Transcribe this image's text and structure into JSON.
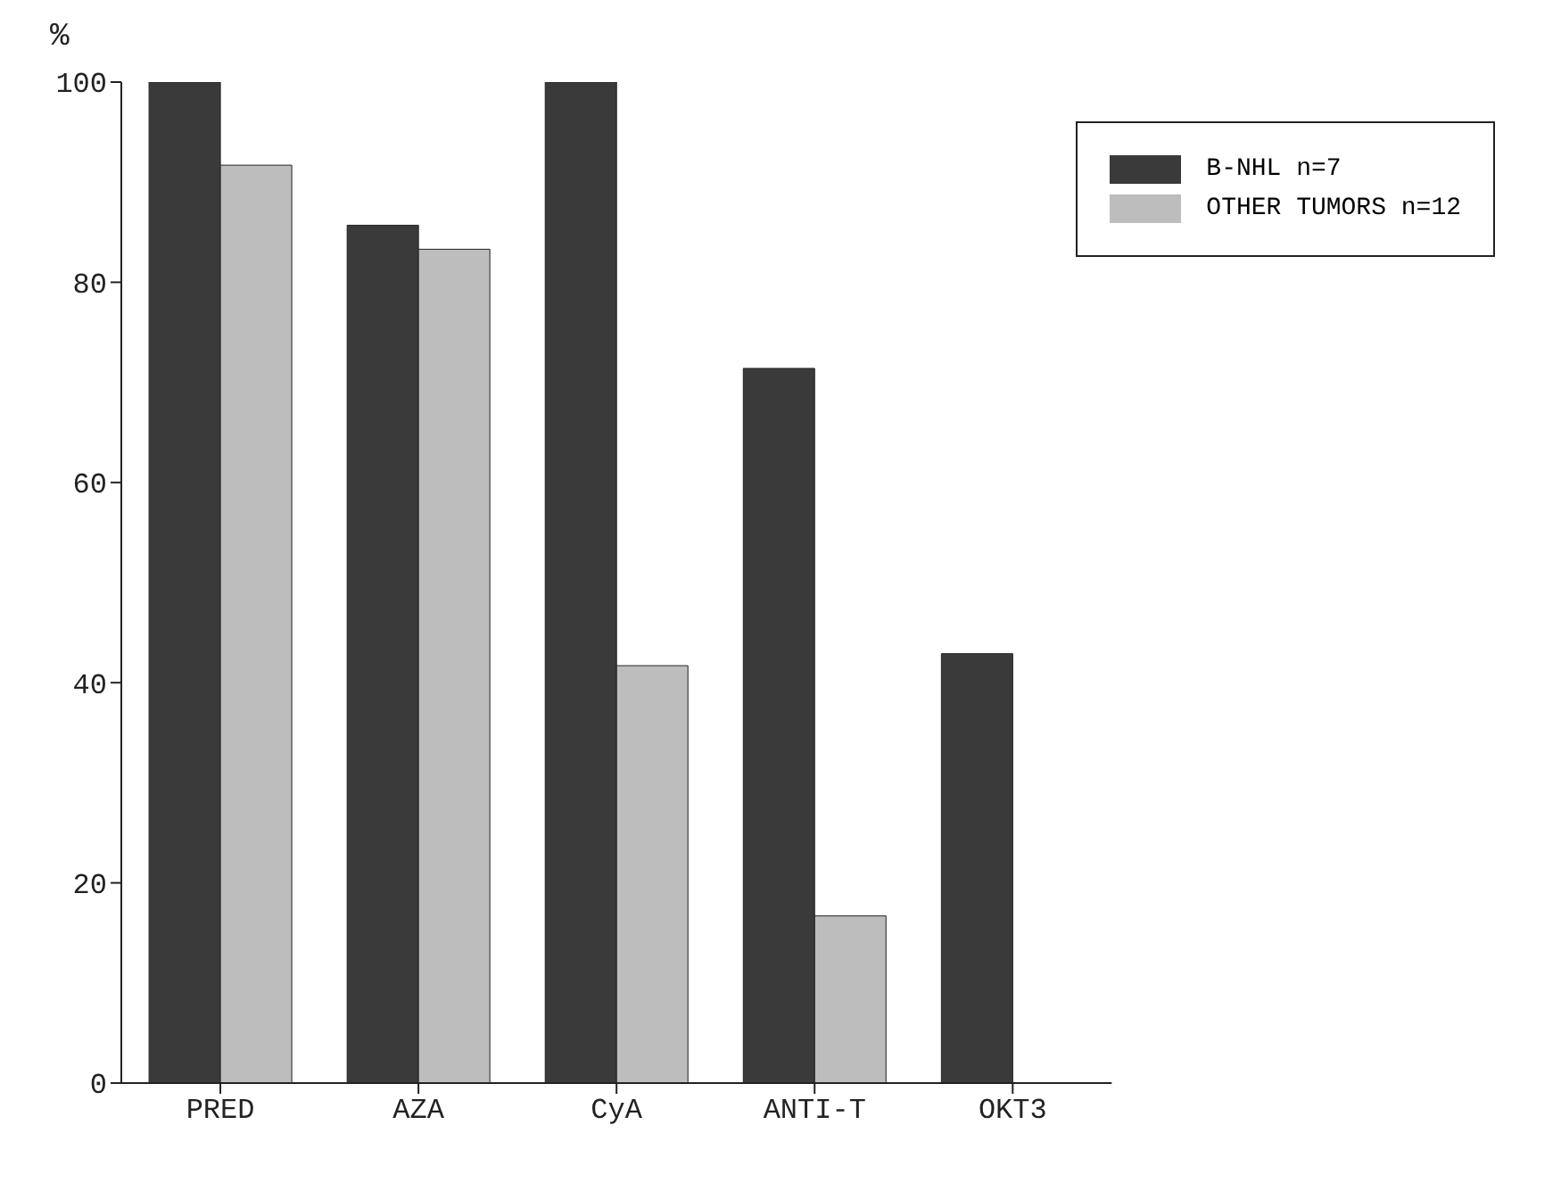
{
  "chart_data": {
    "type": "bar",
    "ylabel": "%",
    "categories": [
      "PRED",
      "AZA",
      "CyA",
      "ANTI-T",
      "OKT3"
    ],
    "series": [
      {
        "name": "B-NHL n=7",
        "color": "#3a3a3a",
        "values": [
          100,
          85.7,
          100,
          71.4,
          42.9
        ]
      },
      {
        "name": "OTHER TUMORS n=12",
        "color": "#bdbdbd",
        "values": [
          91.7,
          83.3,
          41.7,
          16.7,
          0
        ]
      }
    ],
    "ylim": [
      0,
      100
    ],
    "yticks": [
      0,
      20,
      40,
      60,
      80,
      100
    ],
    "grid": false,
    "legend": "top right"
  }
}
